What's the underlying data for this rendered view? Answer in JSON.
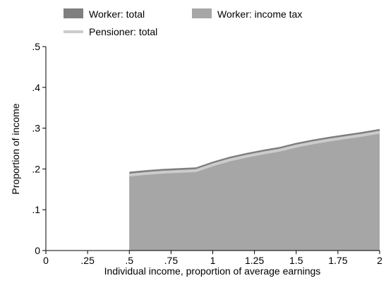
{
  "chart_data": {
    "type": "area",
    "xlabel": "Individual income, proportion of average earnings",
    "ylabel": "Proportion of income",
    "xlim": [
      0,
      2
    ],
    "ylim": [
      0,
      0.5
    ],
    "x_ticks": [
      0,
      0.25,
      0.5,
      0.75,
      1,
      1.25,
      1.5,
      1.75,
      2
    ],
    "x_tick_labels": [
      "0",
      ".25",
      ".5",
      ".75",
      "1",
      "1.25",
      "1.5",
      "1.75",
      "2"
    ],
    "y_ticks": [
      0,
      0.1,
      0.2,
      0.3,
      0.4,
      0.5
    ],
    "y_tick_labels": [
      "0",
      ".1",
      ".2",
      ".3",
      ".4",
      ".5"
    ],
    "grid": false,
    "legend_position": "top",
    "x": [
      0.5,
      0.6,
      0.7,
      0.8,
      0.9,
      1.0,
      1.1,
      1.2,
      1.3,
      1.4,
      1.5,
      1.6,
      1.7,
      1.8,
      1.9,
      2.0
    ],
    "series": [
      {
        "name": "Worker: total",
        "kind": "area",
        "color": "#7f7f7f",
        "values": [
          0.193,
          0.197,
          0.2,
          0.202,
          0.204,
          0.218,
          0.23,
          0.239,
          0.247,
          0.254,
          0.264,
          0.272,
          0.279,
          0.285,
          0.291,
          0.298
        ]
      },
      {
        "name": "Worker: income tax",
        "kind": "area",
        "color": "#a6a6a6",
        "values": [
          0.182,
          0.186,
          0.189,
          0.191,
          0.193,
          0.207,
          0.219,
          0.228,
          0.236,
          0.243,
          0.253,
          0.261,
          0.268,
          0.274,
          0.28,
          0.287
        ]
      },
      {
        "name": "Pensioner: total",
        "kind": "line",
        "color": "#cccccc",
        "values": [
          0.185,
          0.189,
          0.192,
          0.194,
          0.196,
          0.21,
          0.222,
          0.231,
          0.239,
          0.246,
          0.256,
          0.264,
          0.271,
          0.277,
          0.283,
          0.29
        ]
      }
    ]
  }
}
